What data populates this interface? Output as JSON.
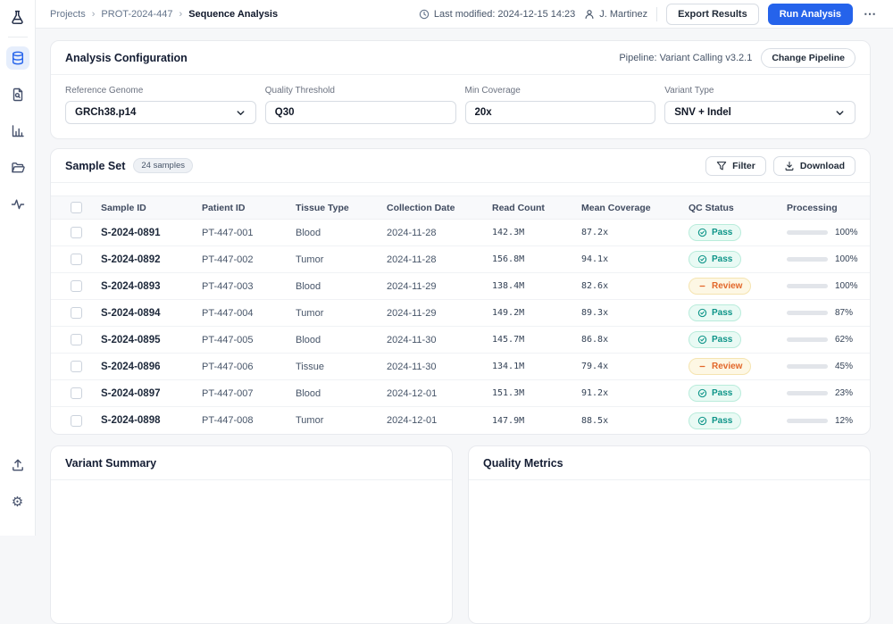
{
  "colors": {
    "accent": "#2563eb",
    "pass_text": "#0d9488",
    "review_text": "#e2672a",
    "page_bg": "#f6f7f9"
  },
  "sidebar": {
    "logo": "flask-icon",
    "items": [
      {
        "id": "database",
        "active": true
      },
      {
        "id": "file-search",
        "active": false
      },
      {
        "id": "bar-chart",
        "active": false
      },
      {
        "id": "folder",
        "active": false
      },
      {
        "id": "activity",
        "active": false
      }
    ],
    "bottom_items": [
      {
        "id": "upload"
      },
      {
        "id": "settings"
      }
    ],
    "gear_glyph": "⚙"
  },
  "header": {
    "breadcrumb": {
      "item1": "Projects",
      "item2": "PROT-2024-447",
      "item3": "Sequence Analysis",
      "sep": "›"
    },
    "last_modified": "Last modified: 2024-12-15 14:23",
    "user": "J. Martinez",
    "export_label": "Export Results",
    "run_label": "Run Analysis",
    "more_glyph": "⋯"
  },
  "config": {
    "title": "Analysis Configuration",
    "pipeline_label": "Pipeline: Variant Calling v3.2.1",
    "change_label": "Change Pipeline",
    "fields": [
      {
        "label": "Reference Genome",
        "value": "GRCh38.p14",
        "type": "select"
      },
      {
        "label": "Quality Threshold",
        "value": "Q30",
        "type": "input"
      },
      {
        "label": "Min Coverage",
        "value": "20x",
        "type": "input"
      },
      {
        "label": "Variant Type",
        "value": "SNV + Indel",
        "type": "select"
      }
    ]
  },
  "samples": {
    "title": "Sample Set",
    "badge": "24 samples",
    "filter_label": "Filter",
    "download_label": "Download",
    "columns": {
      "sample_id": "Sample ID",
      "patient_id": "Patient ID",
      "tissue": "Tissue Type",
      "date": "Collection Date",
      "reads": "Read Count",
      "coverage": "Mean Coverage",
      "qc": "QC Status",
      "processing": "Processing"
    },
    "rows": [
      {
        "sample_id": "S-2024-0891",
        "patient_id": "PT-447-001",
        "tissue": "Blood",
        "date": "2024-11-28",
        "reads": "142.3M",
        "coverage": "87.2x",
        "qc": "Pass",
        "progress": 100
      },
      {
        "sample_id": "S-2024-0892",
        "patient_id": "PT-447-002",
        "tissue": "Tumor",
        "date": "2024-11-28",
        "reads": "156.8M",
        "coverage": "94.1x",
        "qc": "Pass",
        "progress": 100
      },
      {
        "sample_id": "S-2024-0893",
        "patient_id": "PT-447-003",
        "tissue": "Blood",
        "date": "2024-11-29",
        "reads": "138.4M",
        "coverage": "82.6x",
        "qc": "Review",
        "progress": 100
      },
      {
        "sample_id": "S-2024-0894",
        "patient_id": "PT-447-004",
        "tissue": "Tumor",
        "date": "2024-11-29",
        "reads": "149.2M",
        "coverage": "89.3x",
        "qc": "Pass",
        "progress": 87
      },
      {
        "sample_id": "S-2024-0895",
        "patient_id": "PT-447-005",
        "tissue": "Blood",
        "date": "2024-11-30",
        "reads": "145.7M",
        "coverage": "86.8x",
        "qc": "Pass",
        "progress": 62
      },
      {
        "sample_id": "S-2024-0896",
        "patient_id": "PT-447-006",
        "tissue": "Tissue",
        "date": "2024-11-30",
        "reads": "134.1M",
        "coverage": "79.4x",
        "qc": "Review",
        "progress": 45
      },
      {
        "sample_id": "S-2024-0897",
        "patient_id": "PT-447-007",
        "tissue": "Blood",
        "date": "2024-12-01",
        "reads": "151.3M",
        "coverage": "91.2x",
        "qc": "Pass",
        "progress": 23
      },
      {
        "sample_id": "S-2024-0898",
        "patient_id": "PT-447-008",
        "tissue": "Tumor",
        "date": "2024-12-01",
        "reads": "147.9M",
        "coverage": "88.5x",
        "qc": "Pass",
        "progress": 12
      }
    ]
  },
  "panels": {
    "variant_summary_title": "Variant Summary",
    "quality_metrics_title": "Quality Metrics"
  }
}
